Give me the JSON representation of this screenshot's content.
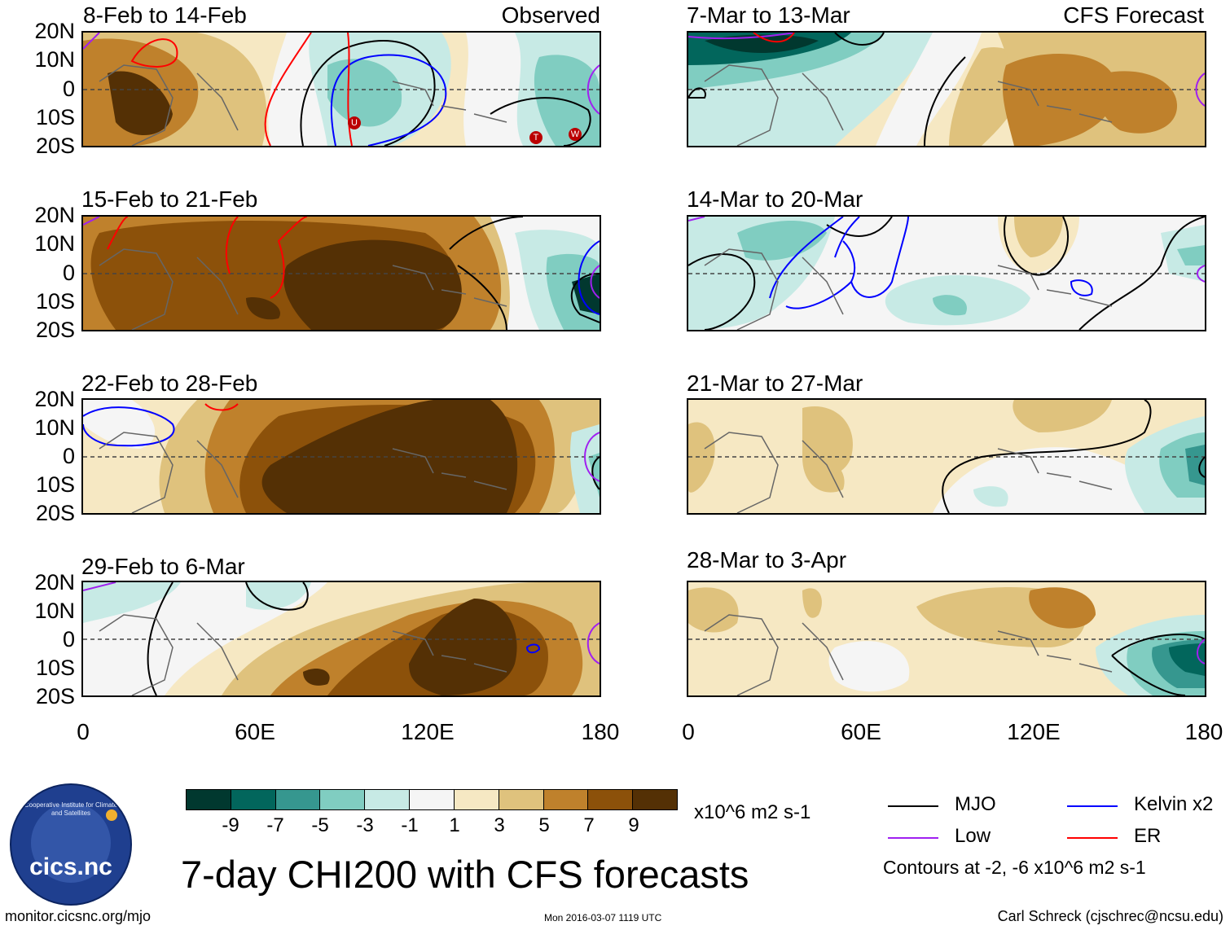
{
  "header": {
    "observed_label": "Observed",
    "forecast_label": "CFS Forecast"
  },
  "panels": [
    {
      "title": "8-Feb to 14-Feb"
    },
    {
      "title": "15-Feb to 21-Feb"
    },
    {
      "title": "22-Feb to 28-Feb"
    },
    {
      "title": "29-Feb to 6-Mar"
    },
    {
      "title": "7-Mar to 13-Mar"
    },
    {
      "title": "14-Mar to 20-Mar"
    },
    {
      "title": "21-Mar to 27-Mar"
    },
    {
      "title": "28-Mar to 3-Apr"
    }
  ],
  "axes": {
    "lat_labels": [
      "20N",
      "10N",
      "0",
      "10S",
      "20S"
    ],
    "lon_labels": [
      "0",
      "60E",
      "120E",
      "180"
    ]
  },
  "storm_markers": [
    "U",
    "T",
    "W"
  ],
  "colorbar": {
    "colors": [
      "#01382f",
      "#02665c",
      "#36978f",
      "#80cdc1",
      "#c7eae5",
      "#f5f5f5",
      "#f6e8c3",
      "#dfc27d",
      "#bf812c",
      "#8c510a",
      "#543005"
    ],
    "labels": [
      "-9",
      "-7",
      "-5",
      "-3",
      "-1",
      "1",
      "3",
      "5",
      "7",
      "9"
    ],
    "units": "x10^6 m2 s-1"
  },
  "legend": {
    "items": [
      {
        "label": "MJO",
        "color": "#000000"
      },
      {
        "label": "Kelvin x2",
        "color": "#0000ff"
      },
      {
        "label": "Low",
        "color": "#a020f0"
      },
      {
        "label": "ER",
        "color": "#ff0000"
      }
    ],
    "contours_note": "Contours at -2, -6 x10^6 m2 s-1"
  },
  "footer": {
    "main_title": "7-day CHI200 with CFS forecasts",
    "url": "monitor.cicsnc.org/mjo",
    "timestamp": "Mon 2016-03-07 1119 UTC",
    "author": "Carl Schreck (cjschrec@ncsu.edu)",
    "logo_text": "cics.nc",
    "logo_ring_text": "Cooperative Institute for Climate and Satellites"
  }
}
